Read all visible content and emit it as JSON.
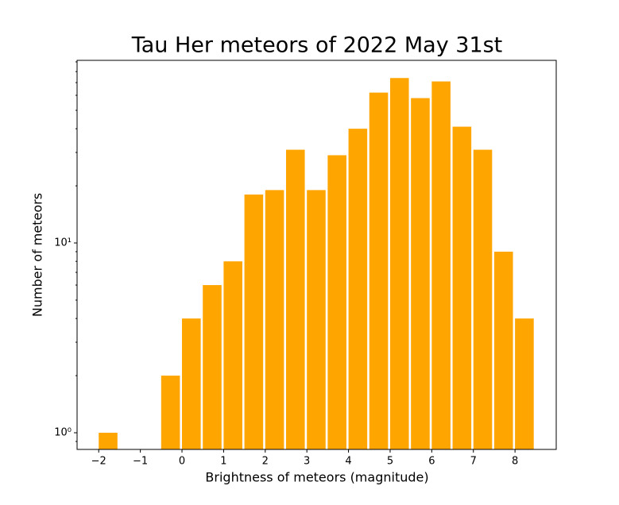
{
  "chart_data": {
    "type": "bar",
    "title": "Tau Her meteors of 2022 May 31st",
    "xlabel": "Brightness of meteors (magnitude)",
    "ylabel": "Number of meteors",
    "x": [
      -2,
      -0.5,
      0,
      0.5,
      1,
      1.5,
      2,
      2.5,
      3,
      3.5,
      4,
      4.5,
      5,
      5.5,
      6,
      6.5,
      7,
      7.5,
      8
    ],
    "values": [
      1,
      2,
      4,
      6,
      8,
      18,
      19,
      31,
      19,
      29,
      40,
      62,
      74,
      58,
      71,
      41,
      31,
      9,
      4
    ],
    "bar_width": 0.45,
    "color": "#ffa500",
    "xlim": [
      -2.52,
      8.99
    ],
    "xticks": [
      {
        "value": -2,
        "label": "−2"
      },
      {
        "value": -1,
        "label": "−1"
      },
      0,
      1,
      2,
      3,
      4,
      5,
      6,
      7,
      8
    ],
    "ylim": [
      0.817,
      91.7
    ],
    "yscale": "log",
    "yticks": [
      {
        "value": 1,
        "label": "10⁰"
      },
      {
        "value": 10,
        "label": "10¹"
      }
    ],
    "yminorticks": [
      0.9,
      2,
      3,
      4,
      5,
      6,
      7,
      8,
      9,
      20,
      30,
      40,
      50,
      60,
      70,
      80,
      90
    ]
  }
}
